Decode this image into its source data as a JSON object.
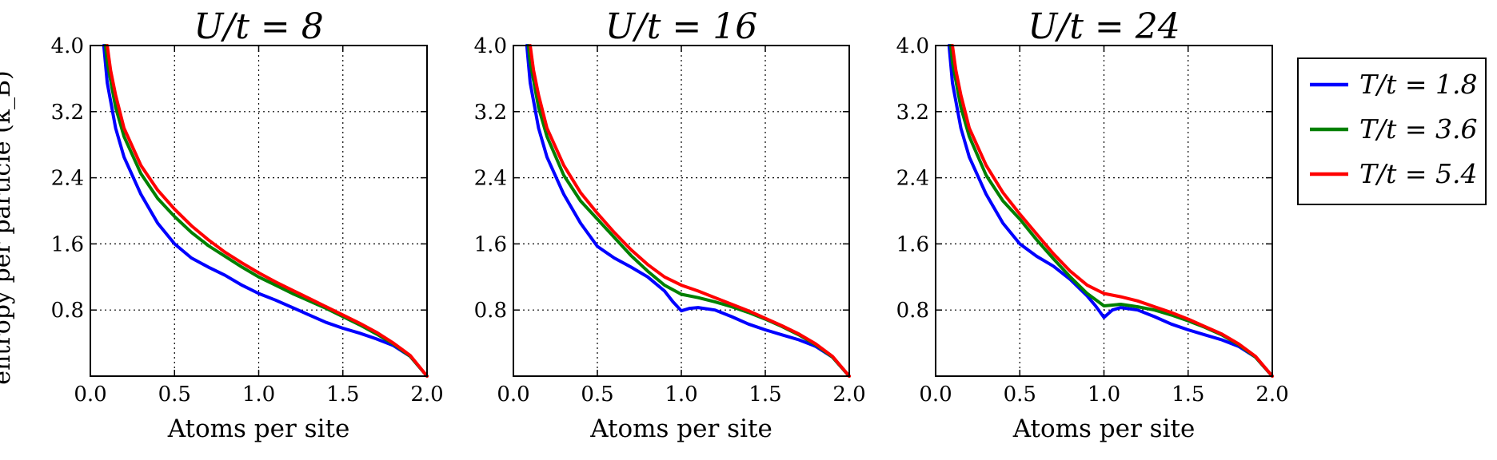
{
  "figure": {
    "ylabel": "entropy per particle (k_B)"
  },
  "legend": [
    {
      "label": "T/t = 1.8",
      "color": "#0000ff"
    },
    {
      "label": "T/t = 3.6",
      "color": "#008000"
    },
    {
      "label": "T/t = 5.4",
      "color": "#ff0000"
    }
  ],
  "chart_data": [
    {
      "type": "line",
      "title": "U/t = 8",
      "xlabel": "Atoms per site",
      "ylabel": "",
      "xlim": [
        0.0,
        2.0
      ],
      "ylim": [
        0.0,
        4.0
      ],
      "xticks": [
        "0.0",
        "0.5",
        "1.0",
        "1.5",
        "2.0"
      ],
      "yticks": [
        "0.8",
        "1.6",
        "2.4",
        "3.2",
        "4.0"
      ],
      "grid": true,
      "series": [
        {
          "name": "T/t = 1.8",
          "x": [
            0.08,
            0.1,
            0.15,
            0.2,
            0.3,
            0.4,
            0.5,
            0.6,
            0.7,
            0.8,
            0.9,
            1.0,
            1.1,
            1.2,
            1.3,
            1.4,
            1.5,
            1.6,
            1.7,
            1.8,
            1.9,
            2.0
          ],
          "y": [
            4.0,
            3.55,
            3.0,
            2.65,
            2.2,
            1.85,
            1.6,
            1.43,
            1.32,
            1.22,
            1.1,
            1.0,
            0.92,
            0.83,
            0.74,
            0.65,
            0.58,
            0.52,
            0.45,
            0.37,
            0.24,
            0.0
          ]
        },
        {
          "name": "T/t = 3.6",
          "x": [
            0.09,
            0.1,
            0.15,
            0.2,
            0.3,
            0.4,
            0.5,
            0.6,
            0.7,
            0.8,
            0.9,
            1.0,
            1.1,
            1.2,
            1.3,
            1.4,
            1.5,
            1.6,
            1.7,
            1.8,
            1.9,
            2.0
          ],
          "y": [
            4.0,
            3.8,
            3.25,
            2.9,
            2.45,
            2.15,
            1.93,
            1.74,
            1.58,
            1.45,
            1.32,
            1.2,
            1.1,
            1.0,
            0.91,
            0.82,
            0.72,
            0.62,
            0.51,
            0.39,
            0.24,
            0.0
          ]
        },
        {
          "name": "T/t = 5.4",
          "x": [
            0.1,
            0.12,
            0.15,
            0.2,
            0.3,
            0.4,
            0.5,
            0.6,
            0.7,
            0.8,
            0.9,
            1.0,
            1.1,
            1.2,
            1.3,
            1.4,
            1.5,
            1.6,
            1.7,
            1.8,
            1.9,
            2.0
          ],
          "y": [
            4.0,
            3.7,
            3.4,
            3.0,
            2.55,
            2.25,
            2.02,
            1.82,
            1.65,
            1.5,
            1.37,
            1.25,
            1.14,
            1.04,
            0.94,
            0.84,
            0.74,
            0.64,
            0.53,
            0.4,
            0.25,
            0.0
          ]
        }
      ]
    },
    {
      "type": "line",
      "title": "U/t = 16",
      "xlabel": "Atoms per site",
      "ylabel": "",
      "xlim": [
        0.0,
        2.0
      ],
      "ylim": [
        0.0,
        4.0
      ],
      "xticks": [
        "0.0",
        "0.5",
        "1.0",
        "1.5",
        "2.0"
      ],
      "yticks": [
        "0.8",
        "1.6",
        "2.4",
        "3.2",
        "4.0"
      ],
      "grid": true,
      "series": [
        {
          "name": "T/t = 1.8",
          "x": [
            0.08,
            0.1,
            0.15,
            0.2,
            0.3,
            0.4,
            0.5,
            0.6,
            0.7,
            0.8,
            0.9,
            0.95,
            1.0,
            1.05,
            1.1,
            1.2,
            1.3,
            1.4,
            1.5,
            1.6,
            1.7,
            1.8,
            1.9,
            2.0
          ],
          "y": [
            4.0,
            3.55,
            3.0,
            2.65,
            2.2,
            1.85,
            1.57,
            1.43,
            1.32,
            1.2,
            1.03,
            0.9,
            0.79,
            0.82,
            0.83,
            0.8,
            0.72,
            0.63,
            0.56,
            0.5,
            0.44,
            0.36,
            0.23,
            0.0
          ]
        },
        {
          "name": "T/t = 3.6",
          "x": [
            0.09,
            0.1,
            0.15,
            0.2,
            0.3,
            0.4,
            0.5,
            0.6,
            0.7,
            0.8,
            0.9,
            1.0,
            1.1,
            1.2,
            1.3,
            1.4,
            1.5,
            1.6,
            1.7,
            1.8,
            1.9,
            2.0
          ],
          "y": [
            4.0,
            3.8,
            3.25,
            2.9,
            2.43,
            2.12,
            1.9,
            1.68,
            1.46,
            1.27,
            1.1,
            0.99,
            0.95,
            0.9,
            0.84,
            0.77,
            0.69,
            0.6,
            0.5,
            0.38,
            0.23,
            0.0
          ]
        },
        {
          "name": "T/t = 5.4",
          "x": [
            0.1,
            0.12,
            0.15,
            0.2,
            0.3,
            0.4,
            0.5,
            0.6,
            0.7,
            0.8,
            0.9,
            1.0,
            1.1,
            1.2,
            1.3,
            1.4,
            1.5,
            1.6,
            1.7,
            1.8,
            1.9,
            2.0
          ],
          "y": [
            4.0,
            3.7,
            3.4,
            3.0,
            2.55,
            2.22,
            1.97,
            1.74,
            1.53,
            1.35,
            1.2,
            1.1,
            1.03,
            0.95,
            0.87,
            0.79,
            0.7,
            0.61,
            0.51,
            0.39,
            0.24,
            0.0
          ]
        }
      ]
    },
    {
      "type": "line",
      "title": "U/t = 24",
      "xlabel": "Atoms per site",
      "ylabel": "",
      "xlim": [
        0.0,
        2.0
      ],
      "ylim": [
        0.0,
        4.0
      ],
      "xticks": [
        "0.0",
        "0.5",
        "1.0",
        "1.5",
        "2.0"
      ],
      "yticks": [
        "0.8",
        "1.6",
        "2.4",
        "3.2",
        "4.0"
      ],
      "grid": true,
      "series": [
        {
          "name": "T/t = 1.8",
          "x": [
            0.08,
            0.1,
            0.15,
            0.2,
            0.3,
            0.4,
            0.5,
            0.6,
            0.7,
            0.8,
            0.9,
            0.95,
            1.0,
            1.05,
            1.1,
            1.2,
            1.3,
            1.4,
            1.5,
            1.6,
            1.7,
            1.8,
            1.9,
            2.0
          ],
          "y": [
            4.0,
            3.55,
            3.0,
            2.65,
            2.2,
            1.85,
            1.6,
            1.45,
            1.33,
            1.17,
            0.97,
            0.85,
            0.71,
            0.8,
            0.83,
            0.8,
            0.72,
            0.63,
            0.56,
            0.5,
            0.44,
            0.36,
            0.23,
            0.0
          ]
        },
        {
          "name": "T/t = 3.6",
          "x": [
            0.09,
            0.1,
            0.15,
            0.2,
            0.3,
            0.4,
            0.5,
            0.6,
            0.7,
            0.8,
            0.9,
            1.0,
            1.1,
            1.2,
            1.3,
            1.4,
            1.5,
            1.6,
            1.7,
            1.8,
            1.9,
            2.0
          ],
          "y": [
            4.0,
            3.8,
            3.25,
            2.9,
            2.43,
            2.12,
            1.9,
            1.65,
            1.42,
            1.2,
            1.0,
            0.85,
            0.87,
            0.84,
            0.8,
            0.74,
            0.67,
            0.59,
            0.5,
            0.38,
            0.23,
            0.0
          ]
        },
        {
          "name": "T/t = 5.4",
          "x": [
            0.1,
            0.12,
            0.15,
            0.2,
            0.3,
            0.4,
            0.5,
            0.6,
            0.7,
            0.8,
            0.9,
            1.0,
            1.1,
            1.2,
            1.3,
            1.4,
            1.5,
            1.6,
            1.7,
            1.8,
            1.9,
            2.0
          ],
          "y": [
            4.0,
            3.7,
            3.4,
            3.0,
            2.55,
            2.22,
            1.96,
            1.72,
            1.48,
            1.27,
            1.1,
            1.0,
            0.96,
            0.91,
            0.84,
            0.77,
            0.69,
            0.6,
            0.51,
            0.39,
            0.24,
            0.0
          ]
        }
      ]
    }
  ]
}
